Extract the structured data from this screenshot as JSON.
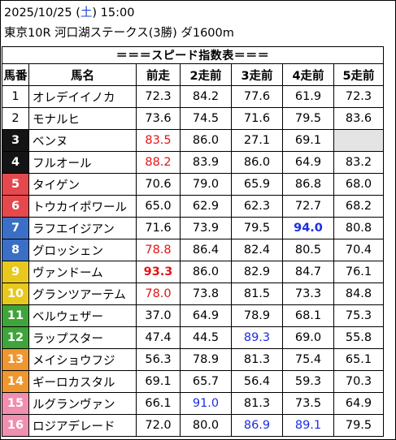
{
  "header": {
    "date": "2025/10/25",
    "weekday_open": "(",
    "weekday": "土",
    "weekday_close": ")",
    "time": "15:00",
    "race": "東京10R 河口湖ステークス(3勝) ダ1600m"
  },
  "table": {
    "title": "＝＝＝スピード指数表＝＝＝",
    "columns": [
      "馬番",
      "馬名",
      "前走",
      "2走前",
      "3走前",
      "4走前",
      "5走前"
    ],
    "rows": [
      {
        "num": "1",
        "color": "#ffffff",
        "text_color": "#000000",
        "name": "オレデイイノカ",
        "vals": [
          {
            "v": "72.3",
            "s": ""
          },
          {
            "v": "84.2",
            "s": ""
          },
          {
            "v": "77.6",
            "s": ""
          },
          {
            "v": "61.9",
            "s": ""
          },
          {
            "v": "72.3",
            "s": ""
          }
        ]
      },
      {
        "num": "2",
        "color": "#ffffff",
        "text_color": "#000000",
        "name": "モナルヒ",
        "vals": [
          {
            "v": "73.6",
            "s": ""
          },
          {
            "v": "74.5",
            "s": ""
          },
          {
            "v": "71.6",
            "s": ""
          },
          {
            "v": "79.5",
            "s": ""
          },
          {
            "v": "83.6",
            "s": ""
          }
        ]
      },
      {
        "num": "3",
        "color": "#141414",
        "text_color": "#ffffff",
        "name": "ベンヌ",
        "vals": [
          {
            "v": "83.5",
            "s": "red"
          },
          {
            "v": "86.0",
            "s": ""
          },
          {
            "v": "27.1",
            "s": ""
          },
          {
            "v": "69.1",
            "s": ""
          },
          {
            "v": "",
            "s": "empty"
          }
        ]
      },
      {
        "num": "4",
        "color": "#141414",
        "text_color": "#ffffff",
        "name": "フルオール",
        "vals": [
          {
            "v": "88.2",
            "s": "red"
          },
          {
            "v": "83.9",
            "s": ""
          },
          {
            "v": "86.0",
            "s": ""
          },
          {
            "v": "64.9",
            "s": ""
          },
          {
            "v": "83.2",
            "s": ""
          }
        ]
      },
      {
        "num": "5",
        "color": "#e5484d",
        "text_color": "#ffffff",
        "name": "タイゲン",
        "vals": [
          {
            "v": "70.6",
            "s": ""
          },
          {
            "v": "79.0",
            "s": ""
          },
          {
            "v": "65.9",
            "s": ""
          },
          {
            "v": "86.8",
            "s": ""
          },
          {
            "v": "68.0",
            "s": ""
          }
        ]
      },
      {
        "num": "6",
        "color": "#e5484d",
        "text_color": "#ffffff",
        "name": "トウカイポワール",
        "vals": [
          {
            "v": "65.0",
            "s": ""
          },
          {
            "v": "62.9",
            "s": ""
          },
          {
            "v": "62.3",
            "s": ""
          },
          {
            "v": "72.7",
            "s": ""
          },
          {
            "v": "68.2",
            "s": ""
          }
        ]
      },
      {
        "num": "7",
        "color": "#3b6fc6",
        "text_color": "#ffffff",
        "name": "ラフエイジアン",
        "vals": [
          {
            "v": "71.6",
            "s": ""
          },
          {
            "v": "73.9",
            "s": ""
          },
          {
            "v": "79.5",
            "s": ""
          },
          {
            "v": "94.0",
            "s": "blue-bold"
          },
          {
            "v": "80.8",
            "s": ""
          }
        ]
      },
      {
        "num": "8",
        "color": "#3b6fc6",
        "text_color": "#ffffff",
        "name": "グロッシェン",
        "vals": [
          {
            "v": "78.8",
            "s": "red"
          },
          {
            "v": "86.4",
            "s": ""
          },
          {
            "v": "82.4",
            "s": ""
          },
          {
            "v": "80.5",
            "s": ""
          },
          {
            "v": "70.4",
            "s": ""
          }
        ]
      },
      {
        "num": "9",
        "color": "#e8c81c",
        "text_color": "#ffffff",
        "name": "ヴァンドーム",
        "vals": [
          {
            "v": "93.3",
            "s": "red-bold"
          },
          {
            "v": "86.0",
            "s": ""
          },
          {
            "v": "82.9",
            "s": ""
          },
          {
            "v": "84.7",
            "s": ""
          },
          {
            "v": "76.1",
            "s": ""
          }
        ]
      },
      {
        "num": "10",
        "color": "#e8c81c",
        "text_color": "#ffffff",
        "name": "グランツアーテム",
        "vals": [
          {
            "v": "78.0",
            "s": "red"
          },
          {
            "v": "73.8",
            "s": ""
          },
          {
            "v": "81.5",
            "s": ""
          },
          {
            "v": "73.3",
            "s": ""
          },
          {
            "v": "84.8",
            "s": ""
          }
        ]
      },
      {
        "num": "11",
        "color": "#3fa53a",
        "text_color": "#ffffff",
        "name": "ベルウェザー",
        "vals": [
          {
            "v": "37.0",
            "s": ""
          },
          {
            "v": "64.9",
            "s": ""
          },
          {
            "v": "78.9",
            "s": ""
          },
          {
            "v": "68.1",
            "s": ""
          },
          {
            "v": "75.3",
            "s": ""
          }
        ]
      },
      {
        "num": "12",
        "color": "#3fa53a",
        "text_color": "#ffffff",
        "name": "ラップスター",
        "vals": [
          {
            "v": "47.4",
            "s": ""
          },
          {
            "v": "44.5",
            "s": ""
          },
          {
            "v": "89.3",
            "s": "blue"
          },
          {
            "v": "69.0",
            "s": ""
          },
          {
            "v": "55.8",
            "s": ""
          }
        ]
      },
      {
        "num": "13",
        "color": "#f0962e",
        "text_color": "#ffffff",
        "name": "メイショウフジ",
        "vals": [
          {
            "v": "56.3",
            "s": ""
          },
          {
            "v": "78.9",
            "s": ""
          },
          {
            "v": "81.3",
            "s": ""
          },
          {
            "v": "75.4",
            "s": ""
          },
          {
            "v": "65.1",
            "s": ""
          }
        ]
      },
      {
        "num": "14",
        "color": "#f0962e",
        "text_color": "#ffffff",
        "name": "ギーロカスタル",
        "vals": [
          {
            "v": "69.1",
            "s": ""
          },
          {
            "v": "65.7",
            "s": ""
          },
          {
            "v": "56.4",
            "s": ""
          },
          {
            "v": "59.3",
            "s": ""
          },
          {
            "v": "70.3",
            "s": ""
          }
        ]
      },
      {
        "num": "15",
        "color": "#f08fb0",
        "text_color": "#ffffff",
        "name": "ルグランヴァン",
        "vals": [
          {
            "v": "66.1",
            "s": ""
          },
          {
            "v": "91.0",
            "s": "blue"
          },
          {
            "v": "81.3",
            "s": ""
          },
          {
            "v": "73.5",
            "s": ""
          },
          {
            "v": "64.9",
            "s": ""
          }
        ]
      },
      {
        "num": "16",
        "color": "#f08fb0",
        "text_color": "#ffffff",
        "name": "ロジアデレード",
        "vals": [
          {
            "v": "72.0",
            "s": ""
          },
          {
            "v": "80.0",
            "s": ""
          },
          {
            "v": "86.9",
            "s": "blue"
          },
          {
            "v": "89.1",
            "s": "blue"
          },
          {
            "v": "79.5",
            "s": ""
          }
        ]
      }
    ]
  }
}
